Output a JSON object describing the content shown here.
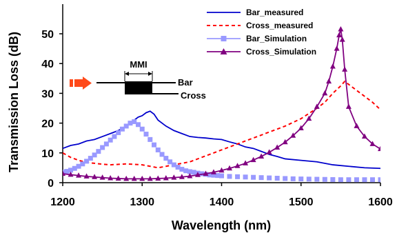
{
  "chart_data": {
    "type": "line",
    "title": "",
    "xlabel": "Wavelength (nm)",
    "ylabel": "Transmission Loss (dB)",
    "xlim": [
      1200,
      1600
    ],
    "ylim": [
      0,
      55
    ],
    "xticks": [
      1200,
      1300,
      1400,
      1500,
      1600
    ],
    "yticks": [
      0,
      10,
      20,
      30,
      40,
      50
    ],
    "grid": false,
    "legend_position": "top-right",
    "series": [
      {
        "name": "Bar_measured",
        "color": "#0000cc",
        "style": "solid",
        "marker": "none",
        "x": [
          1200,
          1210,
          1220,
          1230,
          1240,
          1250,
          1260,
          1270,
          1280,
          1290,
          1295,
          1300,
          1305,
          1310,
          1315,
          1320,
          1330,
          1340,
          1350,
          1360,
          1370,
          1380,
          1390,
          1400,
          1410,
          1420,
          1430,
          1440,
          1450,
          1460,
          1470,
          1480,
          1500,
          1520,
          1540,
          1560,
          1580,
          1600
        ],
        "y": [
          11.5,
          12.5,
          13,
          14,
          14.5,
          15.5,
          16.5,
          17.5,
          19,
          21,
          22,
          22.5,
          23.5,
          24,
          23,
          21,
          19,
          17.5,
          16.5,
          15.5,
          15.2,
          15,
          14.7,
          14.5,
          13.7,
          13,
          12,
          11.5,
          10.5,
          9.5,
          8.8,
          8,
          7.5,
          7,
          6,
          5.5,
          5,
          4.8
        ]
      },
      {
        "name": "Cross_measured",
        "color": "#ff0000",
        "style": "dashed",
        "marker": "none",
        "x": [
          1200,
          1210,
          1220,
          1230,
          1240,
          1250,
          1260,
          1280,
          1300,
          1320,
          1330,
          1340,
          1350,
          1360,
          1380,
          1400,
          1420,
          1440,
          1460,
          1480,
          1500,
          1520,
          1530,
          1540,
          1550,
          1555,
          1560,
          1570,
          1580,
          1590,
          1600
        ],
        "y": [
          10,
          8.5,
          7.5,
          6.8,
          6.5,
          6.2,
          6,
          6.3,
          6,
          5,
          5.5,
          6,
          6.5,
          7,
          9,
          11,
          13,
          15,
          17,
          19,
          21.5,
          25,
          27,
          30,
          32.5,
          34,
          33,
          31,
          29,
          27,
          24.5
        ]
      },
      {
        "name": "Bar_Simulation",
        "color": "#9999ff",
        "style": "none",
        "marker": "square",
        "x": [
          1200,
          1205,
          1210,
          1215,
          1220,
          1225,
          1230,
          1235,
          1240,
          1245,
          1250,
          1255,
          1260,
          1265,
          1270,
          1275,
          1280,
          1285,
          1290,
          1295,
          1300,
          1305,
          1310,
          1315,
          1320,
          1325,
          1330,
          1335,
          1340,
          1345,
          1350,
          1355,
          1360,
          1365,
          1370,
          1375,
          1380,
          1385,
          1390,
          1395,
          1400,
          1410,
          1420,
          1430,
          1440,
          1450,
          1460,
          1470,
          1480,
          1490,
          1500,
          1510,
          1520,
          1530,
          1540,
          1550,
          1560,
          1570,
          1580,
          1590,
          1600
        ],
        "y": [
          3.5,
          3.8,
          4.2,
          4.8,
          5.5,
          6.3,
          7.2,
          8.2,
          9.3,
          10.5,
          11.8,
          13,
          14.3,
          15.5,
          16.8,
          18,
          19,
          20,
          20.5,
          19.5,
          18,
          16.3,
          14.5,
          12.7,
          11,
          9.5,
          8.2,
          7,
          6,
          5.2,
          4.5,
          4,
          3.7,
          3.5,
          3.2,
          3,
          2.8,
          2.6,
          2.5,
          2.4,
          2.3,
          2.1,
          2,
          1.9,
          1.8,
          1.7,
          1.6,
          1.5,
          1.4,
          1.3,
          1.25,
          1.2,
          1.15,
          1.1,
          1.05,
          1,
          1,
          1,
          1,
          1,
          1
        ]
      },
      {
        "name": "Cross_Simulation",
        "color": "#800080",
        "style": "solid",
        "marker": "triangle",
        "x": [
          1200,
          1210,
          1220,
          1230,
          1240,
          1250,
          1260,
          1270,
          1280,
          1290,
          1300,
          1310,
          1320,
          1330,
          1340,
          1350,
          1360,
          1370,
          1380,
          1390,
          1400,
          1410,
          1420,
          1430,
          1440,
          1450,
          1460,
          1470,
          1480,
          1490,
          1500,
          1510,
          1520,
          1530,
          1535,
          1540,
          1545,
          1548,
          1550,
          1552,
          1555,
          1560,
          1570,
          1580,
          1590,
          1600
        ],
        "y": [
          3,
          2.7,
          2.4,
          2.1,
          1.9,
          1.7,
          1.5,
          1.4,
          1.3,
          1.3,
          1.3,
          1.3,
          1.4,
          1.5,
          1.7,
          1.9,
          2.2,
          2.6,
          3,
          3.5,
          4.1,
          4.8,
          5.6,
          6.5,
          7.6,
          8.8,
          10.2,
          11.8,
          13.6,
          15.8,
          18.3,
          21.5,
          25.5,
          30,
          34,
          39,
          45,
          49.5,
          51.5,
          48,
          38,
          25.5,
          19,
          15.5,
          13,
          11.3
        ]
      }
    ]
  },
  "inset": {
    "mmi_label": "MMI",
    "bar_label": "Bar",
    "cross_label": "Cross",
    "arrow_color": "#ff4a1a"
  }
}
